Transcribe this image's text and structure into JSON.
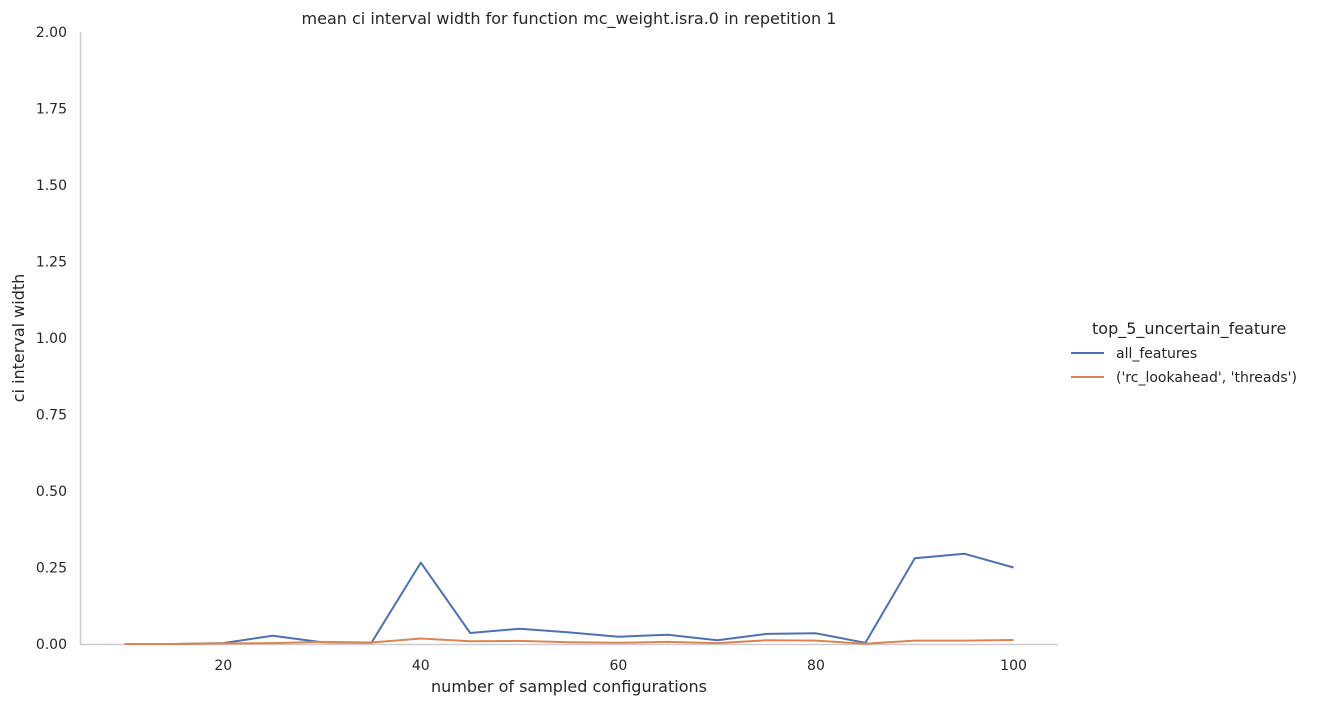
{
  "chart_data": {
    "type": "line",
    "title": "mean ci interval width for function mc_weight.isra.0 in repetition 1",
    "xlabel": "number of sampled configurations",
    "ylabel": "ci interval width",
    "xlim": [
      5.5,
      104.5
    ],
    "ylim": [
      0,
      2.0
    ],
    "xticks": [
      20,
      40,
      60,
      80,
      100
    ],
    "yticks": [
      0.0,
      0.25,
      0.5,
      0.75,
      1.0,
      1.25,
      1.5,
      1.75,
      2.0
    ],
    "ytick_labels": [
      "0.00",
      "0.25",
      "0.50",
      "0.75",
      "1.00",
      "1.25",
      "1.50",
      "1.75",
      "2.00"
    ],
    "grid": false,
    "legend": {
      "title": "top_5_uncertain_feature",
      "placement": "right"
    },
    "x": [
      10,
      15,
      20,
      25,
      30,
      35,
      40,
      45,
      50,
      55,
      60,
      65,
      70,
      75,
      80,
      85,
      90,
      95,
      100
    ],
    "series": [
      {
        "name": "all_features",
        "color": "#4c72b0",
        "values": [
          0.0,
          0.0,
          0.003,
          0.027,
          0.006,
          0.004,
          0.266,
          0.036,
          0.05,
          0.038,
          0.024,
          0.03,
          0.012,
          0.033,
          0.035,
          0.004,
          0.28,
          0.295,
          0.25
        ]
      },
      {
        "name": "('rc_lookahead', 'threads')",
        "color": "#dd8452",
        "values": [
          0.0,
          0.0,
          0.002,
          0.003,
          0.007,
          0.005,
          0.018,
          0.009,
          0.01,
          0.006,
          0.004,
          0.007,
          0.003,
          0.012,
          0.011,
          0.001,
          0.011,
          0.011,
          0.013
        ]
      }
    ]
  }
}
